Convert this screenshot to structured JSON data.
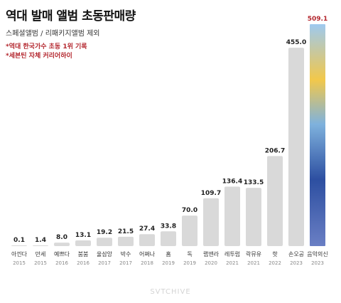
{
  "chart_data": {
    "type": "bar",
    "title": "역대 발매 앨범 초동판매량",
    "subtitle": "스페셜앨범 / 리패키지앨범 제외",
    "notes": [
      "*역대 한국가수 초동 1위 기록",
      "*세븐틴 자체 커리어하이"
    ],
    "categories": [
      "아낀다",
      "만세",
      "예쁘다",
      "붐붐",
      "울삼앙",
      "박수",
      "어쩌나",
      "홈",
      "독",
      "랩앤라",
      "레투럽",
      "락뮤유",
      "핫",
      "손오공",
      "음악의신"
    ],
    "years": [
      "2015",
      "2015",
      "2016",
      "2016",
      "2017",
      "2017",
      "2018",
      "2019",
      "2019",
      "2020",
      "2021",
      "2021",
      "2022",
      "2023",
      "2023"
    ],
    "values": [
      0.1,
      1.4,
      8.0,
      13.1,
      19.2,
      21.5,
      27.4,
      33.8,
      70.0,
      109.7,
      136.4,
      133.5,
      206.7,
      455.0,
      509.1
    ],
    "value_labels": [
      "0.1",
      "1.4",
      "8.0",
      "13.1",
      "19.2",
      "21.5",
      "27.4",
      "33.8",
      "70.0",
      "109.7",
      "136.4",
      "133.5",
      "206.7",
      "455.0",
      "509.1"
    ],
    "highlight_index": 14,
    "ylim": [
      0,
      509.1
    ],
    "colors": {
      "bar": "#d9d9d9",
      "highlight_label": "#b3262d",
      "label": "#222222",
      "year": "#888888"
    },
    "watermark": "SVTCHIVE"
  }
}
